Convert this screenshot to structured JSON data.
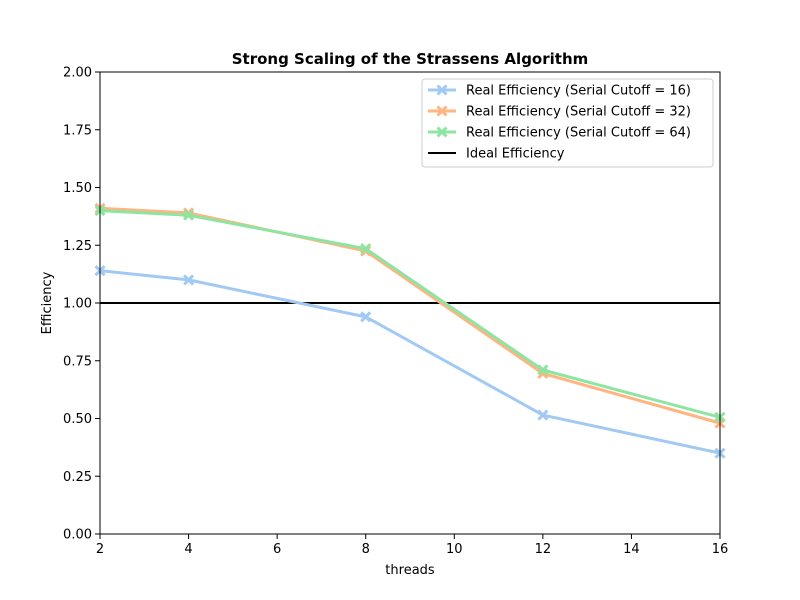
{
  "chart_data": {
    "type": "line",
    "title": "Strong Scaling of the Strassens Algorithm",
    "xlabel": "threads",
    "ylabel": "Efficiency",
    "xlim": [
      2,
      16
    ],
    "ylim": [
      0.0,
      2.0
    ],
    "xticks": [
      2,
      4,
      6,
      8,
      10,
      12,
      14,
      16
    ],
    "xtick_labels": [
      "2",
      "4",
      "6",
      "8",
      "10",
      "12",
      "14",
      "16"
    ],
    "yticks": [
      0.0,
      0.25,
      0.5,
      0.75,
      1.0,
      1.25,
      1.5,
      1.75,
      2.0
    ],
    "ytick_labels": [
      "0.00",
      "0.25",
      "0.50",
      "0.75",
      "1.00",
      "1.25",
      "1.50",
      "1.75",
      "2.00"
    ],
    "grid": false,
    "legend_position": "top-right",
    "x": [
      2,
      4,
      8,
      12,
      16
    ],
    "series": [
      {
        "name": "Real Efficiency (Serial Cutoff = 16)",
        "color": "#a1c9f4",
        "marker": "x",
        "values": [
          1.14,
          1.1,
          0.94,
          0.515,
          0.35
        ]
      },
      {
        "name": "Real Efficiency (Serial Cutoff = 32)",
        "color": "#ffb482",
        "marker": "x",
        "values": [
          1.41,
          1.39,
          1.225,
          0.695,
          0.48
        ]
      },
      {
        "name": "Real Efficiency (Serial Cutoff = 64)",
        "color": "#8de5a1",
        "marker": "x",
        "values": [
          1.4,
          1.38,
          1.235,
          0.71,
          0.505
        ]
      }
    ],
    "reference_lines": [
      {
        "name": "Ideal Efficiency",
        "y": 1.0,
        "color": "#000000"
      }
    ]
  }
}
